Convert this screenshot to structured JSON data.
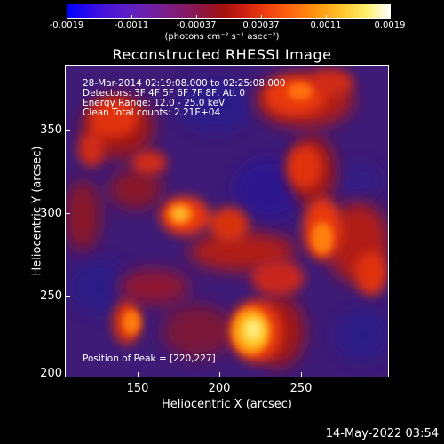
{
  "colorbar": {
    "tick_labels": [
      "-0.0019",
      "-0.0011",
      "-0.00037",
      "0.00037",
      "0.0011",
      "0.0019"
    ],
    "units": "(photons cm⁻² s⁻¹ asec⁻²)"
  },
  "title": "Reconstructed RHESSI Image",
  "info_lines": [
    "28-Mar-2014 02:19:08.000 to 02:25:08.000",
    "Detectors: 3F 4F 5F 6F 7F 8F, Att 0",
    "Energy Range: 12.0 - 25.0 keV",
    "Clean    Total counts: 2.21E+04"
  ],
  "peak_text": "Position of Peak = [220,227]",
  "axes": {
    "xlabel": "Heliocentric X (arcsec)",
    "ylabel": "Heliocentric Y (arcsec)",
    "xticks": [
      "150",
      "200",
      "250"
    ],
    "yticks": [
      "350",
      "300",
      "250",
      "200"
    ],
    "xrange": [
      105,
      295
    ],
    "yrange": [
      200,
      380
    ]
  },
  "datestamp": "14-May-2022 03:54",
  "colors": {
    "background": "#3c1a74",
    "hot": "#ff5a10",
    "peak": "#fff060"
  }
}
